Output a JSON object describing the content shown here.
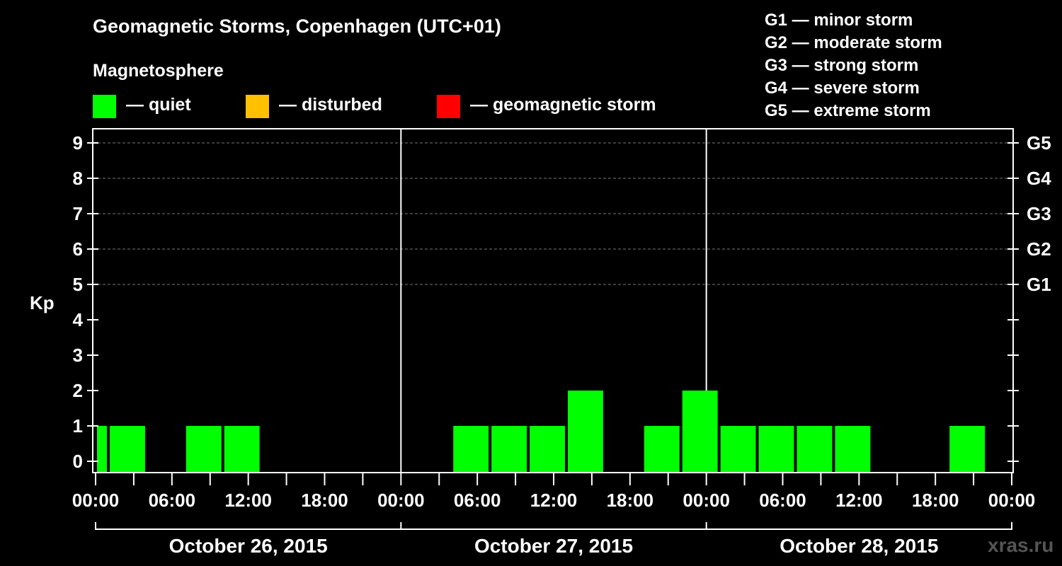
{
  "title": "Geomagnetic Storms, Copenhagen (UTC+01)",
  "magnetosphere": {
    "title": "Magnetosphere",
    "items": [
      {
        "label": "— quiet",
        "color": "#00ff00"
      },
      {
        "label": "— disturbed",
        "color": "#ffc000"
      },
      {
        "label": "— geomagnetic storm",
        "color": "#ff0000"
      }
    ]
  },
  "storm_levels": [
    "G1 — minor storm",
    "G2 — moderate storm",
    "G3 — strong storm",
    "G4 — severe storm",
    "G5 — extreme storm"
  ],
  "watermark": "xras.ru",
  "chart_data": {
    "type": "bar",
    "ylabel": "Kp",
    "ylim": [
      0,
      9
    ],
    "yticks": [
      0,
      1,
      2,
      3,
      4,
      5,
      6,
      7,
      8,
      9
    ],
    "right_axis_labels": [
      {
        "kp": 5,
        "label": "G1"
      },
      {
        "kp": 6,
        "label": "G2"
      },
      {
        "kp": 7,
        "label": "G3"
      },
      {
        "kp": 8,
        "label": "G4"
      },
      {
        "kp": 9,
        "label": "G5"
      }
    ],
    "grid": "dashed at Kp 5-9",
    "x_tick_labels": [
      "00:00",
      "06:00",
      "12:00",
      "18:00",
      "00:00",
      "06:00",
      "12:00",
      "18:00",
      "00:00",
      "06:00",
      "12:00",
      "18:00",
      "00:00"
    ],
    "days": [
      "October 26, 2015",
      "October 27, 2015",
      "October 28, 2015"
    ],
    "series": [
      {
        "color": "#00ff00",
        "bars": [
          {
            "start": "2015-10-26 00:00",
            "end": "2015-10-26 01:00",
            "kp": 1
          },
          {
            "start": "2015-10-26 01:00",
            "end": "2015-10-26 04:00",
            "kp": 1
          },
          {
            "start": "2015-10-26 07:00",
            "end": "2015-10-26 10:00",
            "kp": 1
          },
          {
            "start": "2015-10-26 10:00",
            "end": "2015-10-26 13:00",
            "kp": 1
          },
          {
            "start": "2015-10-27 04:00",
            "end": "2015-10-27 07:00",
            "kp": 1
          },
          {
            "start": "2015-10-27 07:00",
            "end": "2015-10-27 10:00",
            "kp": 1
          },
          {
            "start": "2015-10-27 10:00",
            "end": "2015-10-27 13:00",
            "kp": 1
          },
          {
            "start": "2015-10-27 13:00",
            "end": "2015-10-27 16:00",
            "kp": 2
          },
          {
            "start": "2015-10-27 19:00",
            "end": "2015-10-27 22:00",
            "kp": 1
          },
          {
            "start": "2015-10-27 22:00",
            "end": "2015-10-28 01:00",
            "kp": 2
          },
          {
            "start": "2015-10-28 01:00",
            "end": "2015-10-28 04:00",
            "kp": 1
          },
          {
            "start": "2015-10-28 04:00",
            "end": "2015-10-28 07:00",
            "kp": 1
          },
          {
            "start": "2015-10-28 07:00",
            "end": "2015-10-28 10:00",
            "kp": 1
          },
          {
            "start": "2015-10-28 10:00",
            "end": "2015-10-28 13:00",
            "kp": 1
          },
          {
            "start": "2015-10-28 19:00",
            "end": "2015-10-28 22:00",
            "kp": 1
          }
        ]
      }
    ]
  }
}
